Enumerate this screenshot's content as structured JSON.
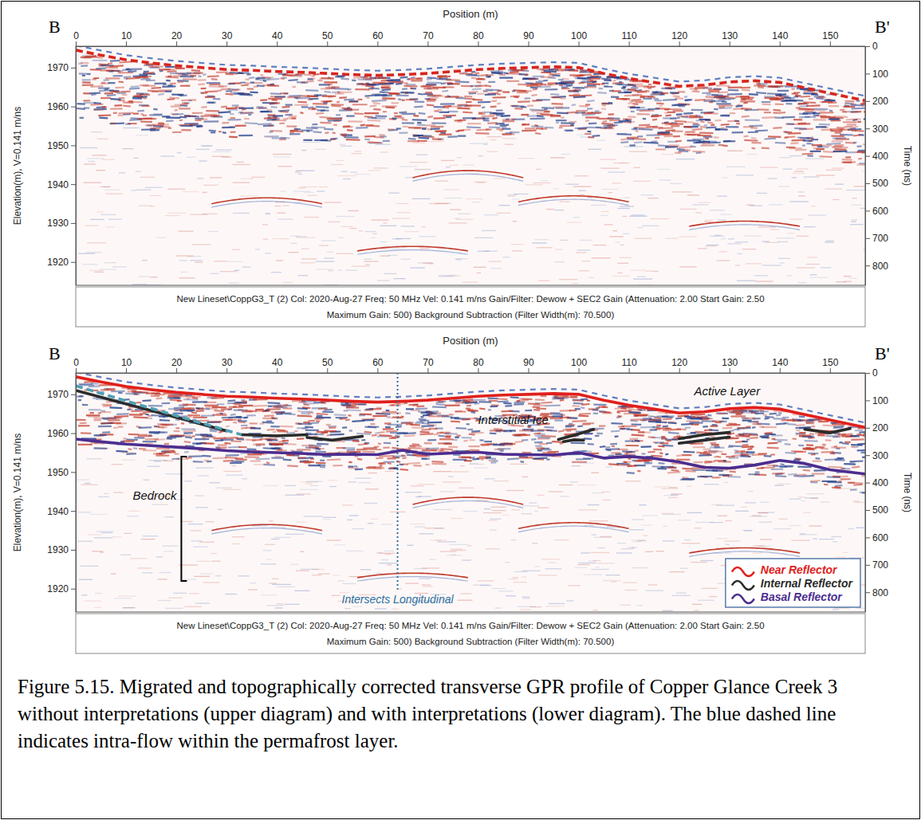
{
  "chart_data": [
    {
      "type": "line",
      "profile_ends": [
        "B",
        "B'"
      ],
      "x_label": "Position (m)",
      "y_label": "Elevation(m), V=0.141 m/ns",
      "y2_label": "Time (ns)",
      "xlim": [
        0,
        157
      ],
      "xticks": [
        0,
        10,
        20,
        30,
        40,
        50,
        60,
        70,
        80,
        90,
        100,
        110,
        120,
        130,
        140,
        150
      ],
      "ylim": [
        1914,
        1975.5
      ],
      "yticks": [
        1920,
        1930,
        1940,
        1950,
        1960,
        1970
      ],
      "y2lim": [
        0,
        872
      ],
      "y2ticks": [
        0,
        100,
        200,
        300,
        400,
        500,
        600,
        700,
        800
      ],
      "subtitle": [
        "New Lineset\\CoppG3_T (2) Col: 2020-Aug-27 Freq: 50 MHz Vel: 0.141 m/ns Gain/Filter: Dewow + SEC2 Gain (Attenuation: 2.00 Start Gain: 2.50",
        "Maximum Gain: 500) Background Subtraction (Filter Width(m): 70.500)"
      ],
      "series": [
        {
          "x": [
            0,
            5,
            10,
            15,
            20,
            25,
            30,
            35,
            40,
            45,
            50,
            55,
            60,
            65,
            70,
            75,
            80,
            85,
            90,
            95,
            100,
            105,
            110,
            115,
            120,
            125,
            130,
            135,
            140,
            145,
            150,
            157
          ],
          "values": [
            1974.5,
            1973.2,
            1972.0,
            1971.2,
            1970.5,
            1970.0,
            1969.5,
            1969.3,
            1969.0,
            1968.8,
            1968.5,
            1968.2,
            1968.0,
            1968.2,
            1968.5,
            1969.0,
            1969.5,
            1969.8,
            1970.0,
            1970.2,
            1970.0,
            1968.5,
            1967.2,
            1966.2,
            1965.2,
            1965.5,
            1966.3,
            1966.6,
            1966.2,
            1964.8,
            1963.4,
            1961.5
          ],
          "color": "#d8261f",
          "line_style": "dashed"
        }
      ],
      "hyperbolas": [
        [
          38,
          1936.5
        ],
        [
          67,
          1924
        ],
        [
          78,
          1943.5
        ],
        [
          99,
          1937
        ],
        [
          133,
          1930.5
        ]
      ]
    },
    {
      "type": "line",
      "profile_ends": [
        "B",
        "B'"
      ],
      "x_label": "Position (m)",
      "y_label": "Elevation(m), V=0.141 m/ns",
      "y2_label": "Time (ns)",
      "xlim": [
        0,
        157
      ],
      "xticks": [
        0,
        10,
        20,
        30,
        40,
        50,
        60,
        70,
        80,
        90,
        100,
        110,
        120,
        130,
        140,
        150
      ],
      "ylim": [
        1914,
        1975.5
      ],
      "yticks": [
        1920,
        1930,
        1940,
        1950,
        1960,
        1970
      ],
      "y2lim": [
        0,
        872
      ],
      "y2ticks": [
        0,
        100,
        200,
        300,
        400,
        500,
        600,
        700,
        800
      ],
      "subtitle": [
        "New Lineset\\CoppG3_T (2) Col: 2020-Aug-27 Freq: 50 MHz Vel: 0.141 m/ns Gain/Filter: Dewow + SEC2 Gain (Attenuation: 2.00 Start Gain: 2.50",
        "Maximum Gain: 500) Background Subtraction (Filter Width(m): 70.500)"
      ],
      "legend": "lower right",
      "series": [
        {
          "name": "Near Reflector",
          "x": [
            0,
            5,
            10,
            15,
            20,
            25,
            30,
            35,
            40,
            45,
            50,
            55,
            60,
            65,
            70,
            75,
            80,
            85,
            90,
            95,
            100,
            105,
            110,
            115,
            120,
            125,
            130,
            135,
            140,
            145,
            150,
            157
          ],
          "values": [
            1974.5,
            1973.2,
            1972.0,
            1971.2,
            1970.5,
            1970.0,
            1969.5,
            1969.3,
            1969.0,
            1968.8,
            1968.5,
            1968.2,
            1968.0,
            1968.2,
            1968.5,
            1969.0,
            1969.5,
            1969.8,
            1970.0,
            1970.2,
            1970.0,
            1968.5,
            1967.2,
            1966.2,
            1965.2,
            1965.5,
            1966.3,
            1966.6,
            1966.2,
            1964.8,
            1963.4,
            1961.5
          ],
          "color": "#e0201c",
          "line_style": "solid"
        },
        {
          "name": "Internal Reflector",
          "x": [
            0,
            15,
            30,
            31,
            33,
            40,
            46,
            46,
            46,
            51,
            57,
            76,
            96,
            100,
            103,
            100,
            97,
            99,
            101,
            110,
            120,
            125,
            130,
            125,
            120,
            125,
            130,
            137,
            145,
            150,
            154
          ],
          "values": [
            1971.0,
            1965.8,
            1960.6,
            null,
            1959.6,
            1959.3,
            1959.6,
            null,
            1958.9,
            1958.2,
            1959.2,
            null,
            1958.4,
            1959.8,
            1961.0,
            null,
            1957.8,
            1958.3,
            1958.2,
            null,
            1958.6,
            1959.6,
            1960.2,
            null,
            1957.4,
            1958.2,
            1959.0,
            null,
            1961.0,
            1960.1,
            1961.2
          ],
          "color": "#2b2b2b",
          "line_style": "solid"
        },
        {
          "name": "Basal Reflector",
          "x": [
            0,
            5,
            10,
            15,
            20,
            25,
            30,
            35,
            40,
            45,
            50,
            55,
            60,
            65,
            70,
            75,
            80,
            85,
            90,
            95,
            100,
            105,
            110,
            115,
            120,
            125,
            130,
            135,
            140,
            145,
            150,
            157
          ],
          "values": [
            1958.5,
            1957.8,
            1957.2,
            1956.8,
            1956.4,
            1956.0,
            1955.5,
            1955.2,
            1955.0,
            1954.8,
            1954.5,
            1954.6,
            1954.5,
            1955.6,
            1954.6,
            1954.9,
            1955.1,
            1954.6,
            1954.5,
            1954.4,
            1955.0,
            1953.6,
            1954.0,
            1953.5,
            1952.6,
            1951.2,
            1951.0,
            1951.8,
            1953.0,
            1952.2,
            1950.6,
            1949.5
          ],
          "color": "#4b2d8f",
          "line_style": "solid"
        },
        {
          "x": [
            0,
            10,
            20,
            33
          ],
          "values": [
            1972.2,
            1968.3,
            1964.5,
            1959.6
          ],
          "color": "#4ea0b5",
          "line_style": "dashed"
        }
      ],
      "hyperbolas": [
        [
          38,
          1936.5
        ],
        [
          67,
          1924
        ],
        [
          78,
          1943.5
        ],
        [
          99,
          1937
        ],
        [
          133,
          1930.5
        ]
      ],
      "annotations": [
        {
          "text": "Active Layer",
          "x": 123,
          "y": 1969.8
        },
        {
          "text": "Interstitial Ice",
          "x": 80,
          "y": 1962.4
        },
        {
          "text": "Bedrock",
          "x": 21,
          "y": 1943,
          "y_range": [
            1954,
            1922
          ]
        },
        {
          "text": "Intersects Longitudinal",
          "x": 64,
          "y": 1916.3,
          "line_x": 64,
          "color": "#2e6fa0"
        }
      ]
    }
  ],
  "caption": "Figure 5.15. Migrated and topographically corrected transverse GPR profile of Copper Glance Creek 3 without interpretations (upper diagram) and with interpretations (lower diagram). The blue dashed line indicates intra-flow within the permafrost layer."
}
